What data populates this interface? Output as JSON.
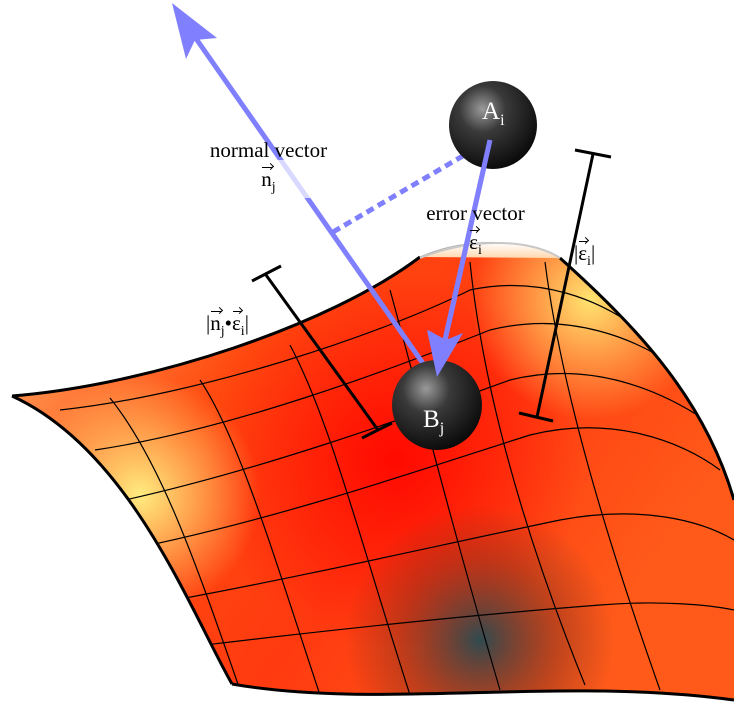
{
  "labels": {
    "normal_vector": {
      "text": "normal vector",
      "symbol": "n",
      "subscript": "j"
    },
    "error_vector": {
      "text": "error vector",
      "symbol": "ε",
      "subscript": "i"
    },
    "error_magnitude": {
      "open": "|",
      "symbol": "ε",
      "subscript": "i",
      "close": "|"
    },
    "projection": {
      "open": "|",
      "symbol_a": "n",
      "subscript_a": "j",
      "operator": "•",
      "symbol_b": "ε",
      "subscript_b": "i",
      "close": "|"
    },
    "point_a": {
      "letter": "A",
      "subscript": "i"
    },
    "point_b": {
      "letter": "B",
      "subscript": "j"
    }
  },
  "colors": {
    "vector": "#8080ff",
    "surface_hot": "#ff1a00",
    "surface_warm": "#ff8a3a",
    "surface_light": "#ffe678",
    "surface_dark": "#39484b",
    "sphere": "#1a1a1a",
    "outline": "#000000"
  }
}
